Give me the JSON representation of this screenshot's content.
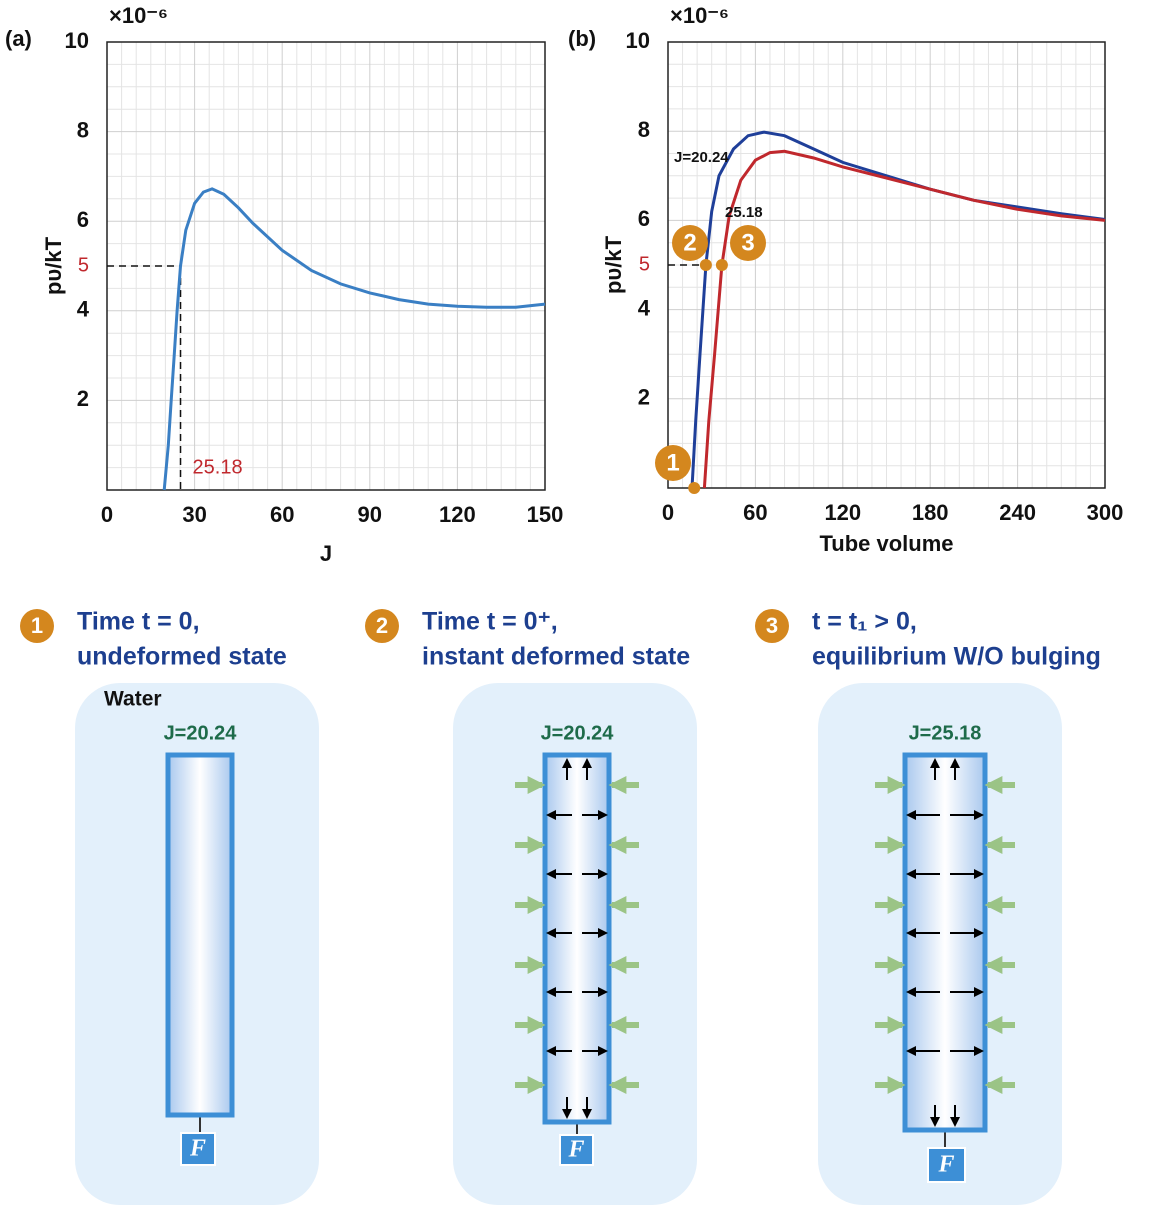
{
  "chart_data": [
    {
      "type": "line",
      "panel": "(a)",
      "xlabel": "J",
      "ylabel": "pυ/kT",
      "y_multiplier": "×10⁻⁶",
      "x": [
        19.6,
        21,
        22,
        23,
        24,
        25.18,
        27,
        30,
        33,
        36,
        40,
        45,
        50,
        60,
        70,
        80,
        90,
        100,
        110,
        120,
        130,
        140,
        150
      ],
      "values": [
        0,
        1,
        2,
        3,
        4,
        5,
        5.8,
        6.4,
        6.65,
        6.72,
        6.6,
        6.3,
        5.95,
        5.35,
        4.9,
        4.6,
        4.4,
        4.25,
        4.15,
        4.1,
        4.08,
        4.08,
        4.15
      ],
      "color": "#3a7fc4",
      "xlim": [
        0,
        150
      ],
      "xticks": [
        0,
        30,
        60,
        90,
        120,
        150
      ],
      "ylim": [
        0,
        10
      ],
      "yticks": [
        2,
        4,
        6,
        8,
        10
      ],
      "grid": true,
      "ref_x": {
        "value": 25.18,
        "label": "25.18"
      },
      "ref_y": {
        "value": 5,
        "label": "5"
      },
      "ref_color": "#c0282d"
    },
    {
      "type": "line",
      "panel": "(b)",
      "xlabel": "Tube volume",
      "ylabel": "pυ/kT",
      "y_multiplier": "×10⁻⁶",
      "series": [
        {
          "name": "J=20.24",
          "color": "#1f3f99",
          "x": [
            16.5,
            19,
            22,
            26,
            30,
            35,
            45,
            55,
            66,
            80,
            100,
            120,
            150,
            180,
            210,
            240,
            270,
            300
          ],
          "values": [
            0,
            1.5,
            3,
            5,
            6.2,
            7,
            7.6,
            7.9,
            7.98,
            7.9,
            7.6,
            7.3,
            7.0,
            6.7,
            6.45,
            6.3,
            6.15,
            6.02
          ]
        },
        {
          "name": "25.18",
          "color": "#c0282d",
          "x": [
            25,
            28,
            32,
            37,
            42,
            50,
            60,
            70,
            80,
            100,
            120,
            150,
            180,
            210,
            240,
            270,
            300
          ],
          "values": [
            0,
            1.5,
            3,
            5,
            6.1,
            6.9,
            7.35,
            7.52,
            7.55,
            7.4,
            7.2,
            6.95,
            6.7,
            6.45,
            6.25,
            6.1,
            6.0
          ]
        }
      ],
      "markers": {
        "x": [
          18,
          26,
          37
        ],
        "values": [
          0,
          5,
          5
        ],
        "labels": [
          "1",
          "2",
          "3"
        ],
        "color": "#d4871e"
      },
      "xlim": [
        0,
        300
      ],
      "xticks": [
        0,
        60,
        120,
        180,
        240,
        300
      ],
      "ylim": [
        0,
        10
      ],
      "yticks": [
        2,
        4,
        6,
        8,
        10
      ],
      "grid": true,
      "ref_y": {
        "value": 5,
        "label": "5"
      },
      "ref_color": "#c0282d"
    }
  ],
  "diagram": {
    "steps": [
      {
        "number": "1",
        "line1": "Time t = 0,",
        "line2": "undeformed state",
        "j_label": "J=20.24",
        "force": "F",
        "medium": "Water"
      },
      {
        "number": "2",
        "line1": "Time t = 0⁺,",
        "line2": "instant deformed state",
        "j_label": "J=20.24",
        "force": "F"
      },
      {
        "number": "3",
        "line1": "t = t₁ > 0,",
        "line2": "equilibrium W/O bulging",
        "j_label": "J=25.18",
        "force": "F"
      }
    ]
  }
}
